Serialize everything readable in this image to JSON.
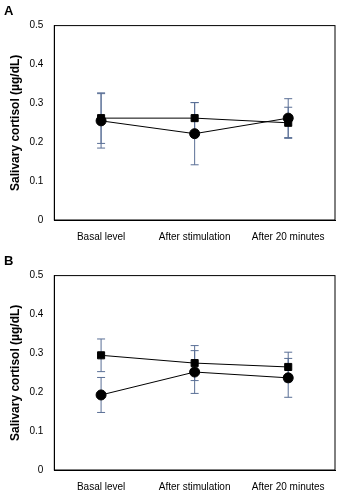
{
  "chart_data": [
    {
      "type": "line",
      "title": "A",
      "categories": [
        "Basal level",
        "After stimulation",
        "After 20 minutes"
      ],
      "y_label": "Salivary cortisol (µg/dL)",
      "ylim": [
        0,
        0.5
      ],
      "yticks": [
        0,
        0.1,
        0.2,
        0.3,
        0.4,
        0.5
      ],
      "grid": false,
      "series": [
        {
          "color": "#000000",
          "marker": "square",
          "values": [
            0.262,
            0.262,
            0.25
          ],
          "errors": [
            0.065,
            0.04,
            0.04
          ]
        },
        {
          "color": "#000000",
          "marker": "circle",
          "values": [
            0.255,
            0.222,
            0.262
          ],
          "errors": [
            0.07,
            0.08,
            0.05
          ]
        }
      ]
    },
    {
      "type": "line",
      "title": "B",
      "categories": [
        "Basal level",
        "After stimulation",
        "After 20 minutes"
      ],
      "y_label": "Salivary cortisol (µg/dL)",
      "ylim": [
        0,
        0.5
      ],
      "yticks": [
        0,
        0.1,
        0.2,
        0.3,
        0.4,
        0.5
      ],
      "grid": false,
      "series": [
        {
          "color": "#000000",
          "marker": "square",
          "values": [
            0.295,
            0.275,
            0.265
          ],
          "errors": [
            0.042,
            0.045,
            0.038
          ]
        },
        {
          "color": "#000000",
          "marker": "circle",
          "values": [
            0.193,
            0.252,
            0.237
          ],
          "errors": [
            0.045,
            0.055,
            0.05
          ]
        }
      ]
    }
  ]
}
